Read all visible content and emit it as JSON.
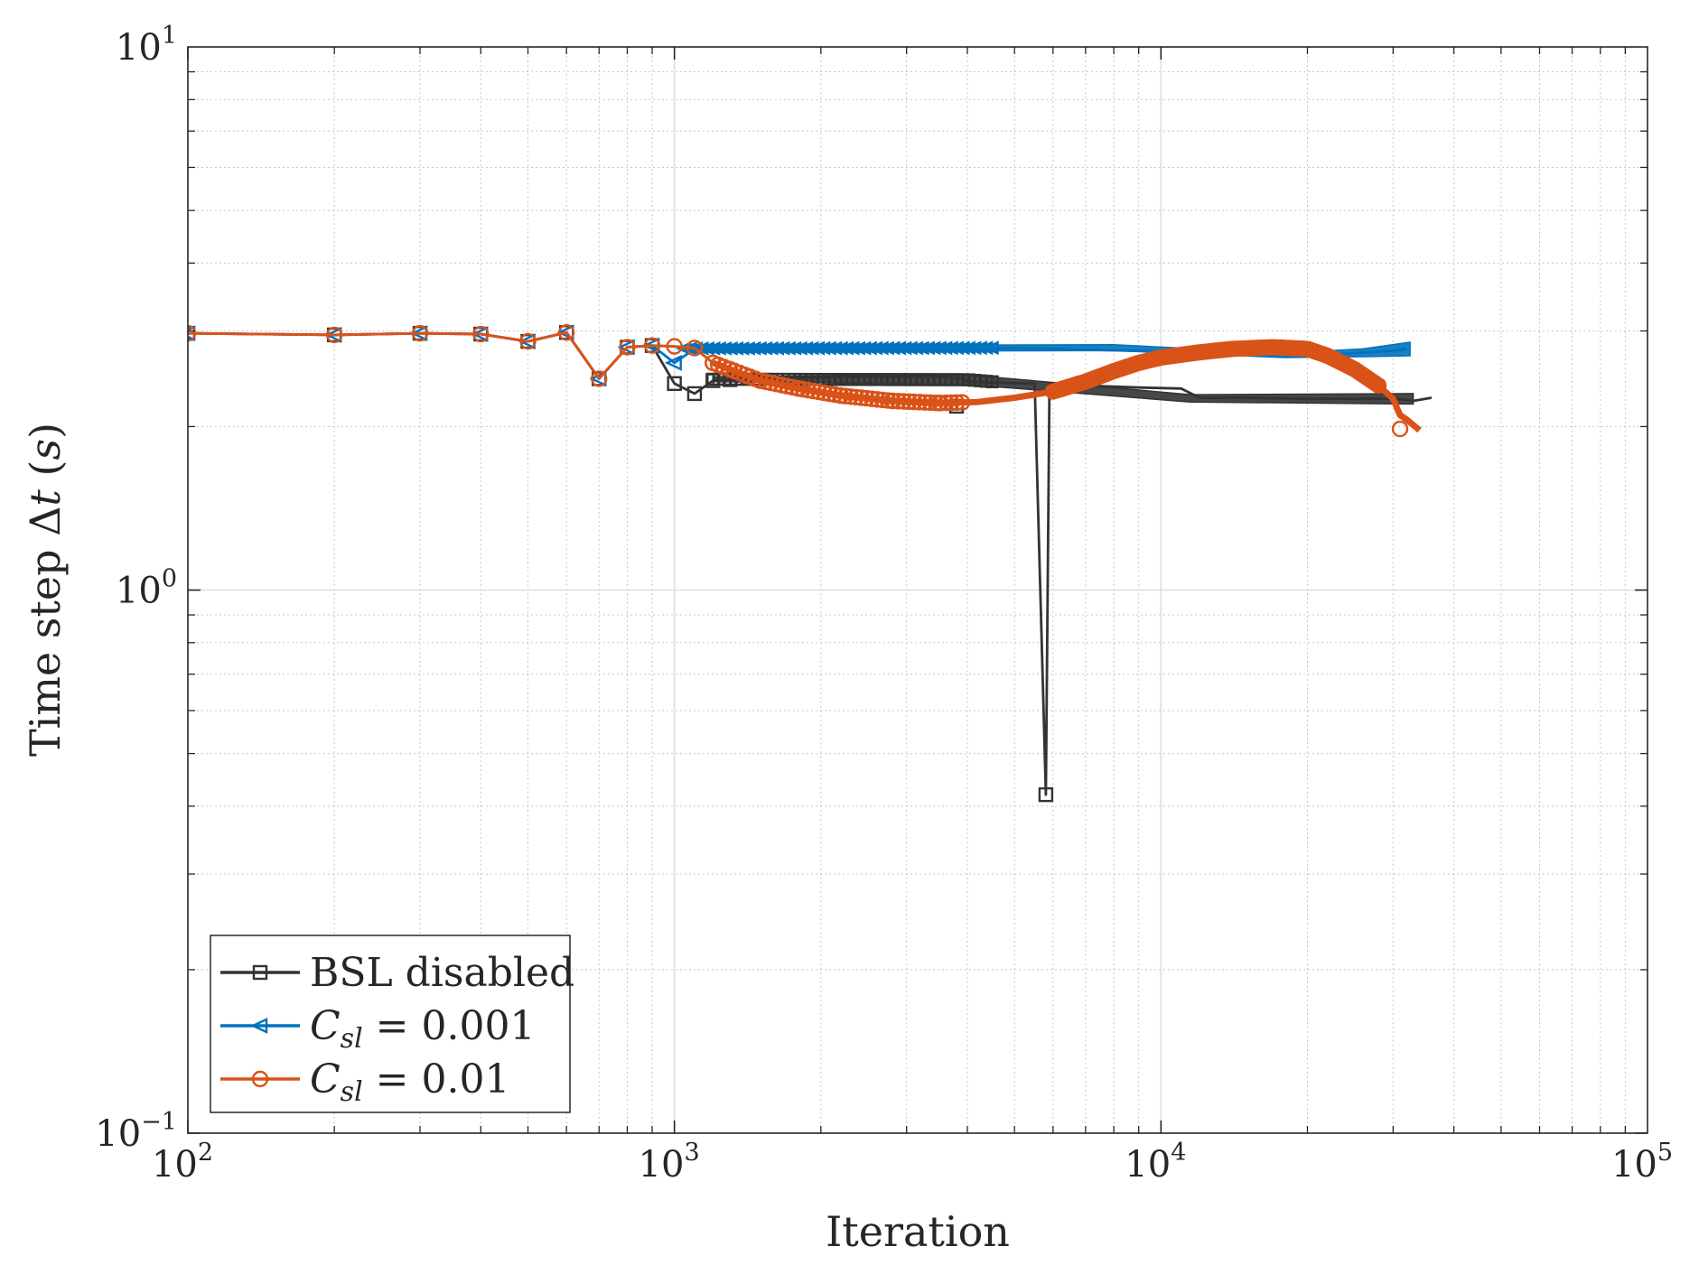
{
  "chart_data": {
    "type": "line",
    "title": "",
    "xlabel": "Iteration",
    "ylabel_prefix": "Time step Δ",
    "ylabel_var": "t",
    "ylabel_units_open": " (",
    "ylabel_units": "s",
    "ylabel_units_close": ")",
    "xscale": "log",
    "yscale": "log",
    "xlim": [
      100,
      100000
    ],
    "ylim": [
      0.1,
      10
    ],
    "grid": true,
    "minor_grid": true,
    "legend_position": "bottom-left",
    "x_ticks": [
      {
        "base": "10",
        "exp": "2",
        "value": 100
      },
      {
        "base": "10",
        "exp": "3",
        "value": 1000
      },
      {
        "base": "10",
        "exp": "4",
        "value": 10000
      },
      {
        "base": "10",
        "exp": "5",
        "value": 100000
      }
    ],
    "y_ticks": [
      {
        "base": "10",
        "exp": "−1",
        "value": 0.1
      },
      {
        "base": "10",
        "exp": "0",
        "value": 1
      },
      {
        "base": "10",
        "exp": "1",
        "value": 10
      }
    ],
    "series": [
      {
        "name": "BSL disabled",
        "legend_label": "BSL disabled",
        "color": "#333333",
        "marker": "square",
        "x": [
          100,
          200,
          300,
          400,
          500,
          600,
          700,
          800,
          900,
          1000,
          1100,
          1200,
          1300,
          1500,
          1800,
          2200,
          2800,
          3500,
          3900,
          4000,
          4500,
          5500,
          5800,
          5900,
          6000,
          7000,
          9000,
          11000,
          12000,
          15000,
          20000,
          25000,
          30000,
          32000,
          33000,
          36000
        ],
        "y": [
          2.97,
          2.95,
          2.97,
          2.96,
          2.87,
          2.98,
          2.45,
          2.8,
          2.82,
          2.4,
          2.3,
          2.43,
          2.44,
          2.45,
          2.46,
          2.47,
          2.47,
          2.47,
          2.45,
          2.42,
          2.41,
          2.4,
          0.42,
          2.39,
          2.39,
          2.38,
          2.36,
          2.35,
          2.26,
          2.26,
          2.25,
          2.25,
          2.25,
          2.24,
          2.23,
          2.26
        ],
        "markers_x": [
          100,
          200,
          300,
          400,
          500,
          600,
          700,
          800,
          900,
          1000,
          1100,
          1200,
          1300,
          3800,
          5800
        ],
        "markers_y": [
          2.97,
          2.95,
          2.97,
          2.96,
          2.87,
          2.98,
          2.45,
          2.8,
          2.82,
          2.4,
          2.3,
          2.43,
          2.44,
          2.18,
          0.42
        ],
        "band_x": [
          1200,
          4000,
          11500,
          33000
        ],
        "band_lo": [
          2.42,
          2.39,
          2.22,
          2.2
        ],
        "band_hi": [
          2.47,
          2.49,
          2.29,
          2.3
        ],
        "band_markers": true
      },
      {
        "name": "C_sl = 0.001",
        "legend_var": "C",
        "legend_sub": "sl",
        "legend_value": " = 0.001",
        "color": "#0072BD",
        "marker": "triangle-left",
        "x": [
          100,
          200,
          300,
          400,
          500,
          600,
          700,
          800,
          900,
          1000,
          1100,
          1200,
          2000,
          5000,
          10000,
          15000,
          20000,
          25000,
          30000,
          32000
        ],
        "y": [
          2.97,
          2.95,
          2.97,
          2.96,
          2.87,
          2.98,
          2.45,
          2.8,
          2.82,
          2.62,
          2.78,
          2.78,
          2.79,
          2.79,
          2.75,
          2.71,
          2.7,
          2.73,
          2.76,
          2.78
        ],
        "markers_x": [
          100,
          200,
          300,
          400,
          500,
          600,
          700,
          800,
          900,
          1000
        ],
        "markers_y": [
          2.97,
          2.95,
          2.97,
          2.96,
          2.87,
          2.98,
          2.45,
          2.8,
          2.82,
          2.62
        ],
        "band_x": [
          1050,
          8000,
          18000,
          26000,
          32500
        ],
        "band_lo": [
          2.75,
          2.76,
          2.68,
          2.69,
          2.7
        ],
        "band_hi": [
          2.82,
          2.83,
          2.73,
          2.78,
          2.86
        ],
        "band_markers": true
      },
      {
        "name": "C_sl = 0.01",
        "legend_var": "C",
        "legend_sub": "sl",
        "legend_value": " = 0.01",
        "color": "#D95319",
        "marker": "circle",
        "x": [
          100,
          200,
          300,
          400,
          500,
          600,
          700,
          800,
          900,
          1000,
          1100,
          1200,
          1300,
          1500,
          1800,
          2200,
          2800,
          3500,
          4200,
          5000,
          6000,
          7000,
          8000,
          9000,
          10000,
          12000,
          14000,
          17000,
          20000,
          22000,
          25000,
          28000,
          30000,
          31000,
          32000,
          34000
        ],
        "y": [
          2.97,
          2.95,
          2.97,
          2.96,
          2.87,
          2.98,
          2.45,
          2.8,
          2.82,
          2.81,
          2.79,
          2.62,
          2.55,
          2.43,
          2.35,
          2.28,
          2.23,
          2.21,
          2.22,
          2.26,
          2.32,
          2.42,
          2.53,
          2.62,
          2.68,
          2.74,
          2.78,
          2.8,
          2.78,
          2.7,
          2.55,
          2.38,
          2.25,
          2.1,
          2.06,
          1.97
        ],
        "markers_x": [
          100,
          200,
          300,
          400,
          500,
          600,
          700,
          800,
          900,
          1000,
          1100,
          1200,
          1300,
          1500,
          1800,
          2200,
          2800,
          3500,
          31000
        ],
        "markers_y": [
          2.97,
          2.95,
          2.97,
          2.96,
          2.87,
          2.98,
          2.45,
          2.8,
          2.82,
          2.81,
          2.79,
          2.62,
          2.55,
          2.43,
          2.35,
          2.28,
          2.23,
          2.21,
          1.98
        ],
        "band_x": [],
        "band_lo": [],
        "band_hi": [],
        "band_markers": false
      }
    ]
  }
}
